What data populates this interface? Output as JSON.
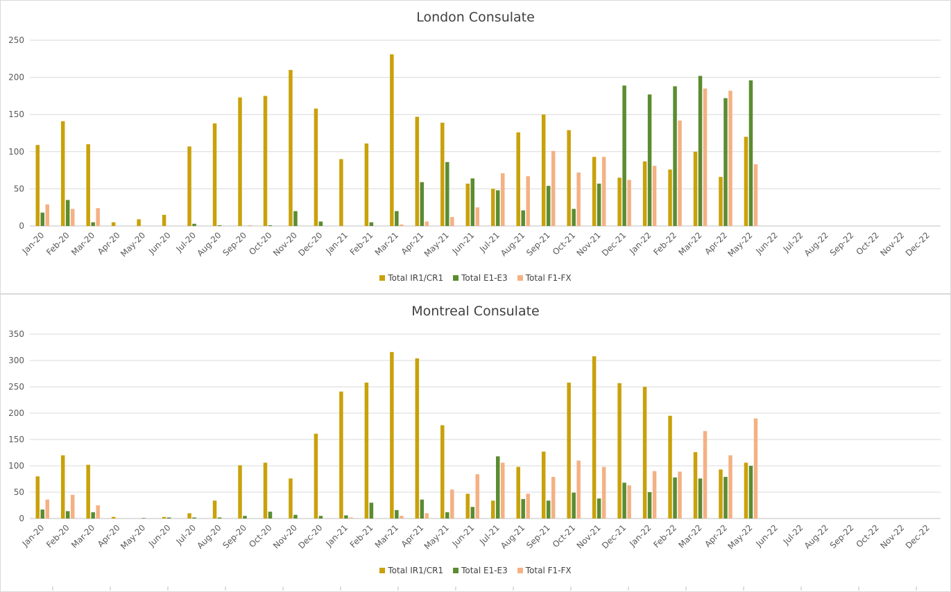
{
  "colors": {
    "ir1": "#c9a10a",
    "e1": "#5b8c31",
    "f1": "#f4b183",
    "grid": "#d9d9d9",
    "axis": "#bfbfbf",
    "text": "#595959"
  },
  "chart_data": [
    {
      "type": "bar",
      "title": "London Consulate",
      "ylim": [
        0,
        250
      ],
      "yticks": [
        0,
        50,
        100,
        150,
        200,
        250
      ],
      "grid": true,
      "legend": "bottom",
      "categories": [
        "Jan-20",
        "Feb-20",
        "Mar-20",
        "Apr-20",
        "May-20",
        "Jun-20",
        "Jul-20",
        "Aug-20",
        "Sep-20",
        "Oct-20",
        "Nov-20",
        "Dec-20",
        "Jan-21",
        "Feb-21",
        "Mar-21",
        "Apr-21",
        "May-21",
        "Jun-21",
        "Jul-21",
        "Aug-21",
        "Sep-21",
        "Oct-21",
        "Nov-21",
        "Dec-21",
        "Jan-22",
        "Feb-22",
        "Mar-22",
        "Apr-22",
        "May-22",
        "Jun-22",
        "Jul-22",
        "Aug-22",
        "Sep-22",
        "Oct-22",
        "Nov-22",
        "Dec-22"
      ],
      "series": [
        {
          "name": "Total IR1/CR1",
          "color_key": "ir1",
          "values": [
            109,
            141,
            110,
            5,
            9,
            15,
            107,
            138,
            173,
            175,
            210,
            158,
            90,
            111,
            231,
            147,
            139,
            57,
            50,
            126,
            150,
            129,
            93,
            65,
            87,
            76,
            100,
            66,
            120,
            null,
            null,
            null,
            null,
            null,
            null,
            null
          ]
        },
        {
          "name": "Total E1-E3",
          "color_key": "e1",
          "values": [
            18,
            35,
            5,
            0,
            0,
            0,
            3,
            1,
            0,
            1,
            20,
            6,
            0,
            5,
            20,
            59,
            86,
            64,
            48,
            21,
            54,
            23,
            57,
            189,
            177,
            188,
            202,
            172,
            196,
            null,
            null,
            null,
            null,
            null,
            null,
            null
          ]
        },
        {
          "name": "Total F1-FX",
          "color_key": "f1",
          "values": [
            29,
            23,
            24,
            0,
            0,
            0,
            0,
            0,
            1,
            0,
            0,
            0,
            0,
            0,
            2,
            6,
            12,
            25,
            71,
            67,
            101,
            72,
            93,
            62,
            81,
            142,
            185,
            182,
            83,
            null,
            null,
            null,
            null,
            null,
            null,
            null
          ]
        }
      ]
    },
    {
      "type": "bar",
      "title": "Montreal Consulate",
      "ylim": [
        0,
        350
      ],
      "yticks": [
        0,
        50,
        100,
        150,
        200,
        250,
        300,
        350
      ],
      "grid": true,
      "legend": "bottom",
      "categories": [
        "Jan-20",
        "Feb-20",
        "Mar-20",
        "Apr-20",
        "May-20",
        "Jun-20",
        "Jul-20",
        "Aug-20",
        "Sep-20",
        "Oct-20",
        "Nov-20",
        "Dec-20",
        "Jan-21",
        "Feb-21",
        "Mar-21",
        "Apr-21",
        "May-21",
        "Jun-21",
        "Jul-21",
        "Aug-21",
        "Sep-21",
        "Oct-21",
        "Nov-21",
        "Dec-21",
        "Jan-22",
        "Feb-22",
        "Mar-22",
        "Apr-22",
        "May-22",
        "Jun-22",
        "Jul-22",
        "Aug-22",
        "Sep-22",
        "Oct-22",
        "Nov-22",
        "Dec-22"
      ],
      "series": [
        {
          "name": "Total IR1/CR1",
          "color_key": "ir1",
          "values": [
            80,
            120,
            102,
            3,
            0,
            3,
            10,
            34,
            101,
            106,
            76,
            161,
            241,
            258,
            316,
            304,
            177,
            47,
            34,
            98,
            127,
            258,
            308,
            257,
            250,
            195,
            126,
            93,
            106,
            null,
            null,
            null,
            null,
            null,
            null,
            null
          ]
        },
        {
          "name": "Total E1-E3",
          "color_key": "e1",
          "values": [
            17,
            14,
            12,
            0,
            1,
            2,
            2,
            2,
            5,
            13,
            7,
            5,
            6,
            30,
            16,
            36,
            12,
            22,
            118,
            37,
            34,
            49,
            38,
            68,
            50,
            78,
            76,
            79,
            100,
            null,
            null,
            null,
            null,
            null,
            null,
            null
          ]
        },
        {
          "name": "Total F1-FX",
          "color_key": "f1",
          "values": [
            36,
            45,
            25,
            0,
            0,
            0,
            0,
            0,
            0,
            0,
            0,
            0,
            2,
            0,
            5,
            10,
            55,
            84,
            106,
            47,
            79,
            110,
            98,
            63,
            90,
            89,
            166,
            120,
            190,
            null,
            null,
            null,
            null,
            null,
            null,
            null
          ]
        }
      ]
    }
  ]
}
